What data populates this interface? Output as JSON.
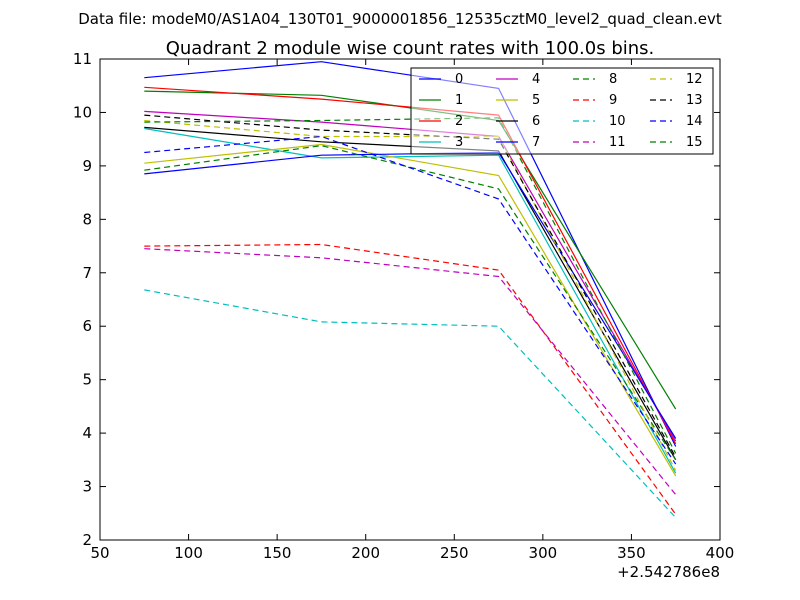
{
  "header": {
    "suptitle": "Data file: modeM0/AS1A04_130T01_9000001856_12535cztM0_level2_quad_clean.evt"
  },
  "chart_data": {
    "type": "line",
    "title": "Quadrant 2 module wise count rates with 100.0s bins.",
    "xlabel": "",
    "ylabel": "",
    "x_offset_label": "+2.542786e8",
    "xlim": [
      50,
      400
    ],
    "ylim": [
      2,
      11
    ],
    "xticks": [
      50,
      100,
      150,
      200,
      250,
      300,
      350,
      400
    ],
    "yticks": [
      2,
      3,
      4,
      5,
      6,
      7,
      8,
      9,
      10,
      11
    ],
    "grid": false,
    "legend_position": "top-right",
    "legend_columns": 4,
    "x": [
      75,
      175,
      275,
      375
    ],
    "series": [
      {
        "name": "0",
        "color": "#0000ff",
        "dash": "solid",
        "values": [
          10.65,
          10.95,
          10.45,
          3.75
        ]
      },
      {
        "name": "1",
        "color": "#008000",
        "dash": "solid",
        "values": [
          10.4,
          10.32,
          9.85,
          4.45
        ]
      },
      {
        "name": "2",
        "color": "#ff0000",
        "dash": "solid",
        "values": [
          10.47,
          10.25,
          9.95,
          3.8
        ]
      },
      {
        "name": "3",
        "color": "#00bfbf",
        "dash": "solid",
        "values": [
          9.7,
          9.15,
          9.2,
          3.25
        ]
      },
      {
        "name": "4",
        "color": "#bf00bf",
        "dash": "solid",
        "values": [
          10.02,
          9.82,
          9.55,
          3.85
        ]
      },
      {
        "name": "5",
        "color": "#bfbf00",
        "dash": "solid",
        "values": [
          9.05,
          9.4,
          8.82,
          3.2
        ]
      },
      {
        "name": "6",
        "color": "#000000",
        "dash": "solid",
        "values": [
          9.72,
          9.45,
          9.28,
          3.5
        ]
      },
      {
        "name": "7",
        "color": "#0000ff",
        "dash": "solid",
        "values": [
          8.85,
          9.2,
          9.25,
          3.9
        ]
      },
      {
        "name": "8",
        "color": "#008000",
        "dash": "dashed",
        "values": [
          8.92,
          9.38,
          8.57,
          3.5
        ]
      },
      {
        "name": "9",
        "color": "#ff0000",
        "dash": "dashed",
        "values": [
          7.5,
          7.53,
          7.05,
          2.48
        ]
      },
      {
        "name": "10",
        "color": "#00bfbf",
        "dash": "dashed",
        "values": [
          6.68,
          6.08,
          6.0,
          2.42
        ]
      },
      {
        "name": "11",
        "color": "#bf00bf",
        "dash": "dashed",
        "values": [
          7.45,
          7.28,
          6.93,
          2.85
        ]
      },
      {
        "name": "12",
        "color": "#bfbf00",
        "dash": "dashed",
        "values": [
          9.85,
          9.55,
          9.55,
          3.3
        ]
      },
      {
        "name": "13",
        "color": "#000000",
        "dash": "dashed",
        "values": [
          9.95,
          9.67,
          9.5,
          3.55
        ]
      },
      {
        "name": "14",
        "color": "#0000ff",
        "dash": "dashed",
        "values": [
          9.25,
          9.55,
          8.38,
          3.42
        ]
      },
      {
        "name": "15",
        "color": "#008000",
        "dash": "dashed",
        "values": [
          9.82,
          9.85,
          9.9,
          3.62
        ]
      }
    ]
  }
}
